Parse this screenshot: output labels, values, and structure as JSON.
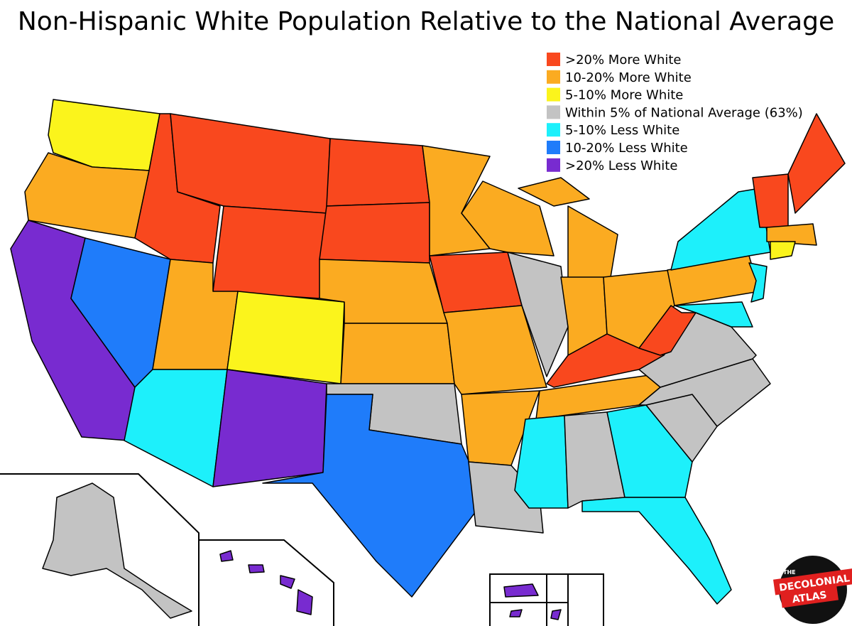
{
  "title": "Non-Hispanic White Population Relative to the National Average",
  "legend": [
    {
      "label": ">20% More White",
      "color": "#f9481e"
    },
    {
      "label": "10-20% More White",
      "color": "#fbab21"
    },
    {
      "label": "5-10% More White",
      "color": "#fbf41c"
    },
    {
      "label": "Within 5% of National Average (63%)",
      "color": "#c3c3c3"
    },
    {
      "label": "5-10% Less White",
      "color": "#1df0fb"
    },
    {
      "label": "10-20% Less White",
      "color": "#1f7cfa"
    },
    {
      "label": ">20% Less White",
      "color": "#782bd0"
    }
  ],
  "logo": {
    "top": "THE",
    "line1": "DECOLONIAL",
    "line2": "ATLAS"
  }
}
